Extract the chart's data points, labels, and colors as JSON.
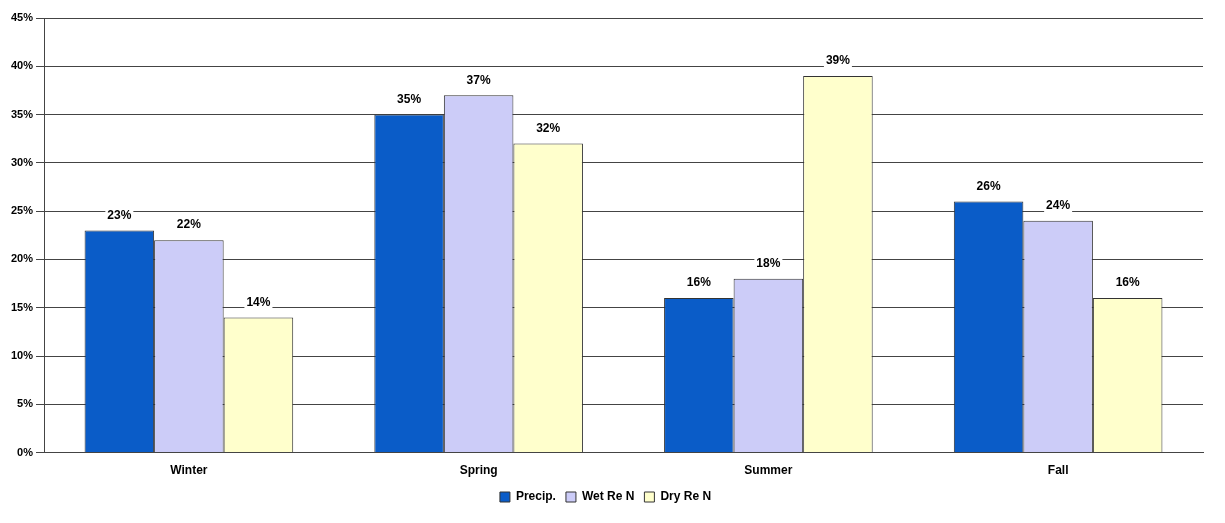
{
  "chart_data": {
    "type": "bar",
    "categories": [
      "Winter",
      "Spring",
      "Summer",
      "Fall"
    ],
    "series": [
      {
        "name": "Precip.",
        "color": "#0a5cc8",
        "values": [
          23,
          35,
          16,
          26
        ],
        "value_labels": [
          "23%",
          "35%",
          "16%",
          "26%"
        ]
      },
      {
        "name": "Wet Re N",
        "color": "#ccccf8",
        "values": [
          22,
          37,
          18,
          24
        ],
        "value_labels": [
          "22%",
          "37%",
          "18%",
          "24%"
        ]
      },
      {
        "name": "Dry Re N",
        "color": "#ffffcc",
        "values": [
          14,
          32,
          39,
          16
        ],
        "value_labels": [
          "14%",
          "32%",
          "39%",
          "16%"
        ]
      }
    ],
    "ylim": [
      0,
      45
    ],
    "yticks": [
      {
        "value": 0,
        "label": "0%"
      },
      {
        "value": 5,
        "label": "5%"
      },
      {
        "value": 10,
        "label": "10%"
      },
      {
        "value": 15,
        "label": "15%"
      },
      {
        "value": 20,
        "label": "20%"
      },
      {
        "value": 25,
        "label": "25%"
      },
      {
        "value": 30,
        "label": "30%"
      },
      {
        "value": 35,
        "label": "35%"
      },
      {
        "value": 40,
        "label": "40%"
      },
      {
        "value": 45,
        "label": "45%"
      }
    ],
    "grid": "y",
    "legend": "bottom"
  }
}
